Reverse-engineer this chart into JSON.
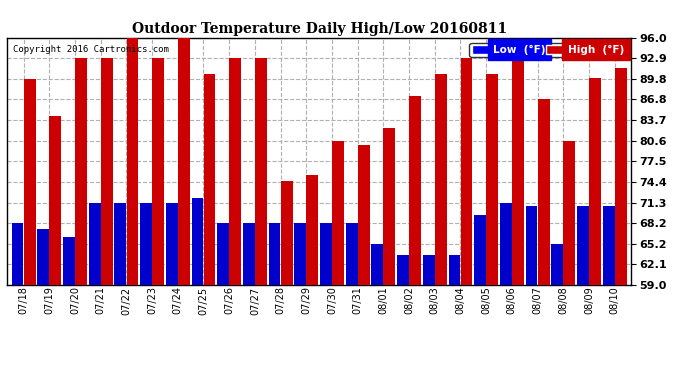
{
  "title": "Outdoor Temperature Daily High/Low 20160811",
  "copyright": "Copyright 2016 Cartronics.com",
  "legend_low": "Low  (°F)",
  "legend_high": "High  (°F)",
  "low_color": "#0000cc",
  "high_color": "#cc0000",
  "legend_low_bg": "#0000ee",
  "legend_high_bg": "#cc0000",
  "ylim": [
    59.0,
    96.0
  ],
  "ybase": 59.0,
  "yticks": [
    59.0,
    62.1,
    65.2,
    68.2,
    71.3,
    74.4,
    77.5,
    80.6,
    83.7,
    86.8,
    89.8,
    92.9,
    96.0
  ],
  "background_color": "#ffffff",
  "grid_color": "#b0b0b0",
  "categories": [
    "07/18",
    "07/19",
    "07/20",
    "07/21",
    "07/22",
    "07/23",
    "07/24",
    "07/25",
    "07/26",
    "07/27",
    "07/28",
    "07/29",
    "07/30",
    "07/31",
    "08/01",
    "08/02",
    "08/03",
    "08/04",
    "08/05",
    "08/06",
    "08/07",
    "08/08",
    "08/09",
    "08/10"
  ],
  "highs": [
    89.8,
    84.2,
    92.9,
    92.9,
    96.0,
    92.9,
    96.0,
    90.5,
    92.9,
    92.9,
    74.5,
    75.5,
    80.6,
    80.0,
    82.4,
    87.2,
    90.5,
    93.0,
    90.5,
    92.6,
    86.8,
    80.6,
    90.0,
    91.5
  ],
  "lows": [
    68.2,
    67.3,
    66.2,
    71.3,
    71.3,
    71.3,
    71.3,
    72.0,
    68.2,
    68.2,
    68.2,
    68.2,
    68.2,
    68.2,
    65.2,
    63.5,
    63.5,
    63.5,
    69.5,
    71.3,
    70.8,
    65.2,
    70.8,
    70.8
  ]
}
